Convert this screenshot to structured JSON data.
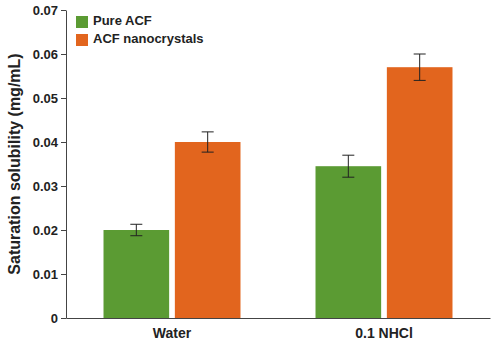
{
  "chart_data": {
    "type": "bar",
    "y_label": "Saturation solubility (mg/mL)",
    "categories": [
      "Water",
      "0.1 NHCl"
    ],
    "series": [
      {
        "name": "Pure ACF",
        "color": "#5b9b33",
        "values": [
          0.02,
          0.0345
        ],
        "errors": [
          0.0013,
          0.0025
        ]
      },
      {
        "name": "ACF nanocrystals",
        "color": "#e2651e",
        "values": [
          0.04,
          0.057
        ],
        "errors": [
          0.0023,
          0.003
        ]
      }
    ],
    "ylim": [
      0,
      0.07
    ],
    "yticks": [
      0,
      0.01,
      0.02,
      0.03,
      0.04,
      0.05,
      0.06,
      0.07
    ],
    "grid": false,
    "legend": "upper left"
  }
}
